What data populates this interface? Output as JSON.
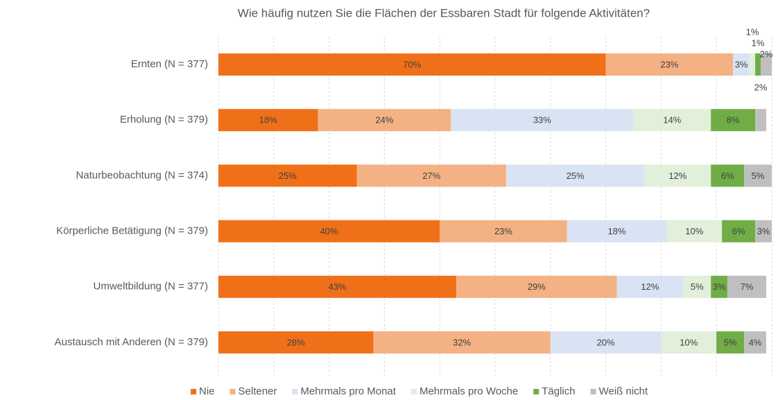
{
  "chart_data": {
    "type": "stacked_bar_horizontal",
    "title": "Wie häufig nutzen Sie die Flächen der Essbaren Stadt für folgende Aktivitäten?",
    "categories": [
      "Ernten (N = 377)",
      "Erholung (N = 379)",
      "Naturbeobachtung (N = 374)",
      "Körperliche Betätigung (N = 379)",
      "Umweltbildung (N = 377)",
      "Austausch mit Anderen (N = 379)"
    ],
    "series": [
      {
        "name": "Nie",
        "color": "#f07019",
        "values": [
          70,
          18,
          25,
          40,
          43,
          28
        ],
        "value_labels": [
          "70%",
          "18%",
          "25%",
          "40%",
          "43%",
          "28%"
        ]
      },
      {
        "name": "Seltener",
        "color": "#f4b183",
        "values": [
          23,
          24,
          27,
          23,
          29,
          32
        ],
        "value_labels": [
          "23%",
          "24%",
          "27%",
          "23%",
          "29%",
          "32%"
        ]
      },
      {
        "name": "Mehrmals pro Monat",
        "color": "#dae3f3",
        "values": [
          3,
          33,
          25,
          18,
          12,
          20
        ],
        "value_labels": [
          "3%",
          "33%",
          "25%",
          "18%",
          "12%",
          "20%"
        ]
      },
      {
        "name": "Mehrmals pro Woche",
        "color": "#e2efda",
        "values": [
          1,
          14,
          12,
          10,
          5,
          10
        ],
        "value_labels": [
          "1%",
          "14%",
          "12%",
          "10%",
          "5%",
          "10%"
        ]
      },
      {
        "name": "Täglich",
        "color": "#70ad47",
        "values": [
          1,
          8,
          6,
          6,
          3,
          5
        ],
        "value_labels": [
          "1%",
          "8%",
          "6%",
          "6%",
          "3%",
          "5%"
        ]
      },
      {
        "name": "Weiß nicht",
        "color": "#bfbfbf",
        "values": [
          2,
          2,
          5,
          3,
          7,
          4
        ],
        "value_labels": [
          "2%",
          "2%",
          "5%",
          "3%",
          "7%",
          "4%"
        ]
      }
    ],
    "xlim": [
      0,
      100
    ],
    "xticks": [
      0,
      10,
      20,
      30,
      40,
      50,
      60,
      70,
      80,
      90,
      100
    ],
    "grid": true,
    "legend": "bottom"
  }
}
